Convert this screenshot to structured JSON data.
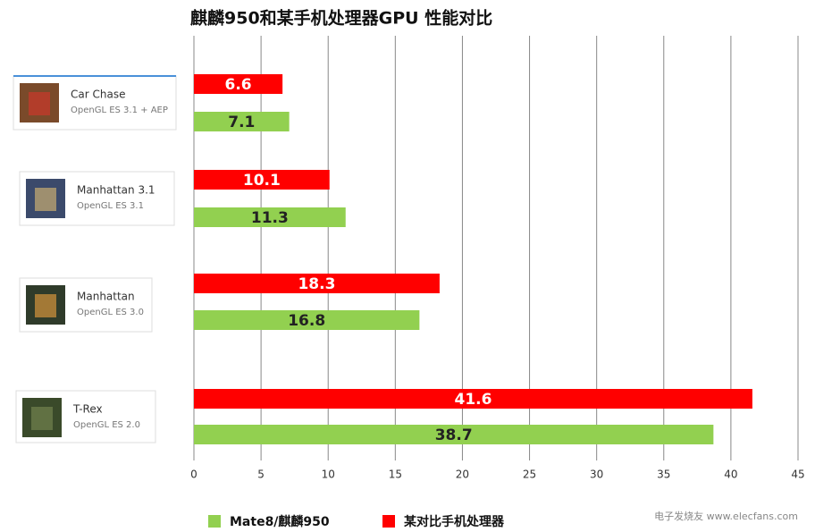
{
  "chart_data": {
    "type": "bar",
    "orientation": "horizontal",
    "title": "麒麟950和某手机处理器GPU 性能对比",
    "categories": [
      "Car Chase",
      "Manhattan 3.1",
      "Manhattan",
      "T-Rex"
    ],
    "category_subtitles": [
      "OpenGL ES 3.1 + AEP",
      "OpenGL ES 3.1",
      "OpenGL ES 3.0",
      "OpenGL ES 2.0"
    ],
    "series": [
      {
        "name": "某对比手机处理器",
        "color": "#ff0000",
        "values": [
          6.6,
          10.1,
          18.3,
          41.6
        ]
      },
      {
        "name": "Mate8/麒麟950",
        "color": "#92d050",
        "values": [
          7.1,
          11.3,
          16.8,
          38.7
        ]
      }
    ],
    "legend_order": [
      1,
      0
    ],
    "xlim": [
      0,
      45
    ],
    "xticks": [
      0,
      5,
      10,
      15,
      20,
      25,
      30,
      35,
      40,
      45
    ],
    "grid": true,
    "watermark": "电子发烧友 www.elecfans.com"
  }
}
